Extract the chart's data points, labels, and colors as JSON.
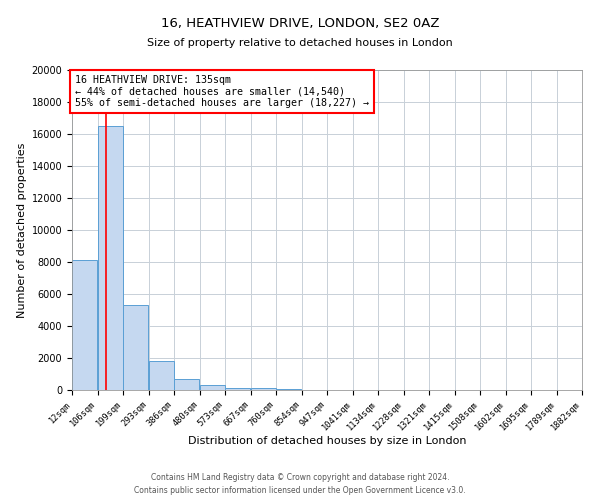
{
  "title": "16, HEATHVIEW DRIVE, LONDON, SE2 0AZ",
  "subtitle": "Size of property relative to detached houses in London",
  "xlabel": "Distribution of detached houses by size in London",
  "ylabel": "Number of detached properties",
  "bin_edges": [
    12,
    106,
    199,
    293,
    386,
    480,
    573,
    667,
    760,
    854,
    947,
    1041,
    1134,
    1228,
    1321,
    1415,
    1508,
    1602,
    1695,
    1789,
    1882
  ],
  "bin_labels": [
    "12sqm",
    "106sqm",
    "199sqm",
    "293sqm",
    "386sqm",
    "480sqm",
    "573sqm",
    "667sqm",
    "760sqm",
    "854sqm",
    "947sqm",
    "1041sqm",
    "1134sqm",
    "1228sqm",
    "1321sqm",
    "1415sqm",
    "1508sqm",
    "1602sqm",
    "1695sqm",
    "1789sqm",
    "1882sqm"
  ],
  "bar_heights": [
    8100,
    16500,
    5300,
    1800,
    700,
    300,
    150,
    100,
    50,
    20,
    10,
    5,
    5,
    5,
    5,
    5,
    5,
    5,
    5,
    5
  ],
  "bar_color": "#c5d8f0",
  "bar_edge_color": "#5a9fd4",
  "grid_color": "#c8d0d8",
  "red_line_x": 135,
  "annotation_text_line1": "16 HEATHVIEW DRIVE: 135sqm",
  "annotation_text_line2": "← 44% of detached houses are smaller (14,540)",
  "annotation_text_line3": "55% of semi-detached houses are larger (18,227) →",
  "footer_line1": "Contains HM Land Registry data © Crown copyright and database right 2024.",
  "footer_line2": "Contains public sector information licensed under the Open Government Licence v3.0.",
  "ylim": [
    0,
    20000
  ],
  "yticks": [
    0,
    2000,
    4000,
    6000,
    8000,
    10000,
    12000,
    14000,
    16000,
    18000,
    20000
  ],
  "background_color": "#ffffff"
}
